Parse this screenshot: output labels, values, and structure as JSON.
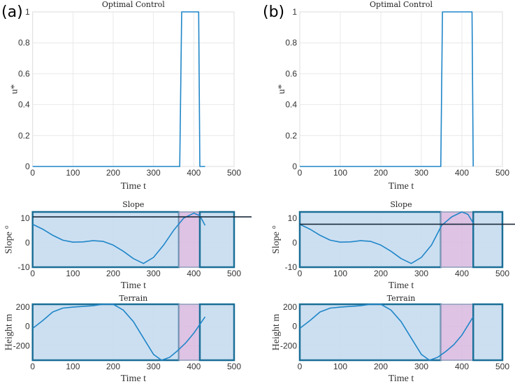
{
  "panel_labels": [
    "(a)",
    "(b)"
  ],
  "colors": {
    "line": "#1f86c8",
    "region_fill": "#c6dcef",
    "region_border": "#1b6f97",
    "control_fill": "#d8b9df",
    "threshold_line": "#1a2a3a",
    "grid": "#e4e4e4"
  },
  "chart_data": [
    {
      "panel": "(a)",
      "type": "line",
      "title": "Optimal Control",
      "xlabel": "Time t",
      "ylabel": "u*",
      "xlim": [
        0,
        500
      ],
      "ylim": [
        0,
        1
      ],
      "xticks": [
        0,
        100,
        200,
        300,
        400,
        500
      ],
      "yticks": [
        0,
        0.2,
        0.4,
        0.6,
        0.8,
        1
      ],
      "ytick_labels": [
        "0",
        "0.2",
        "0.4",
        "0.6",
        "0.8",
        "1"
      ],
      "grid": true,
      "x": [
        0,
        365,
        370,
        412,
        415,
        428
      ],
      "y": [
        0,
        0,
        1,
        1,
        0,
        0
      ]
    },
    {
      "panel": "(a)",
      "type": "line",
      "title": "Slope",
      "xlabel": "Time t",
      "ylabel": "Slope °",
      "xlim": [
        0,
        500
      ],
      "ylim": [
        -10,
        12.5
      ],
      "xticks": [
        0,
        100,
        200,
        300,
        400,
        500
      ],
      "yticks": [
        -10,
        0,
        10
      ],
      "ytick_labels": [
        "-10",
        "0",
        "10"
      ],
      "grid": true,
      "regions": [
        {
          "kind": "coast",
          "from": 0,
          "to": 363
        },
        {
          "kind": "control",
          "from": 363,
          "to": 415
        },
        {
          "kind": "coast",
          "from": 415,
          "to": 500
        }
      ],
      "threshold": 10.5,
      "x": [
        0,
        25,
        50,
        75,
        100,
        125,
        150,
        175,
        200,
        225,
        250,
        275,
        300,
        325,
        350,
        375,
        400,
        415,
        428
      ],
      "y": [
        7.5,
        5.5,
        3,
        1,
        0.2,
        0.3,
        0.8,
        0.5,
        -1,
        -3.5,
        -6.5,
        -8.5,
        -6,
        -1,
        5,
        10,
        12,
        11,
        7
      ]
    },
    {
      "panel": "(a)",
      "type": "line",
      "title": "Terrain",
      "xlabel": "Time t",
      "ylabel": "Height m",
      "xlim": [
        0,
        500
      ],
      "ylim": [
        -350,
        230
      ],
      "xticks": [
        0,
        100,
        200,
        300,
        400,
        500
      ],
      "yticks": [
        -200,
        0,
        200
      ],
      "ytick_labels": [
        "-200",
        "0",
        "200"
      ],
      "grid": true,
      "regions": [
        {
          "kind": "coast",
          "from": 0,
          "to": 363
        },
        {
          "kind": "control",
          "from": 363,
          "to": 415
        },
        {
          "kind": "coast",
          "from": 415,
          "to": 500
        }
      ],
      "x": [
        0,
        25,
        50,
        75,
        100,
        150,
        175,
        200,
        225,
        250,
        275,
        300,
        320,
        340,
        360,
        380,
        400,
        428
      ],
      "y": [
        -20,
        60,
        150,
        190,
        200,
        215,
        230,
        230,
        170,
        50,
        -120,
        -290,
        -350,
        -320,
        -250,
        -170,
        -70,
        100
      ]
    },
    {
      "panel": "(b)",
      "type": "line",
      "title": "Optimal Control",
      "xlabel": "Time t",
      "ylabel": "u*",
      "xlim": [
        0,
        500
      ],
      "ylim": [
        0,
        1
      ],
      "xticks": [
        0,
        100,
        200,
        300,
        400,
        500
      ],
      "yticks": [
        0,
        0.2,
        0.4,
        0.6,
        0.8,
        1
      ],
      "ytick_labels": [
        "0",
        "0.2",
        "0.4",
        "0.6",
        "0.8",
        "1"
      ],
      "grid": true,
      "x": [
        0,
        348,
        352,
        425,
        428
      ],
      "y": [
        0,
        0,
        1,
        1,
        0
      ]
    },
    {
      "panel": "(b)",
      "type": "line",
      "title": "Slope",
      "xlabel": "Time t",
      "ylabel": "Slope °",
      "xlim": [
        0,
        500
      ],
      "ylim": [
        -10,
        12.5
      ],
      "xticks": [
        0,
        100,
        200,
        300,
        400,
        500
      ],
      "yticks": [
        -10,
        0,
        10
      ],
      "ytick_labels": [
        "-10",
        "0",
        "10"
      ],
      "grid": true,
      "regions": [
        {
          "kind": "coast",
          "from": 0,
          "to": 348
        },
        {
          "kind": "control",
          "from": 348,
          "to": 428
        },
        {
          "kind": "coast",
          "from": 428,
          "to": 500
        }
      ],
      "threshold": 7.5,
      "x": [
        0,
        25,
        50,
        75,
        100,
        125,
        150,
        175,
        200,
        225,
        250,
        275,
        300,
        325,
        350,
        375,
        400,
        415,
        428
      ],
      "y": [
        7.5,
        5.5,
        3,
        1,
        0.2,
        0.3,
        0.8,
        0.5,
        -1,
        -3.5,
        -6.5,
        -8.5,
        -6,
        -1,
        7,
        10.5,
        12.5,
        11.5,
        8
      ]
    },
    {
      "panel": "(b)",
      "type": "line",
      "title": "Terrain",
      "xlabel": "Time t",
      "ylabel": "Height m",
      "xlim": [
        0,
        500
      ],
      "ylim": [
        -350,
        230
      ],
      "xticks": [
        0,
        100,
        200,
        300,
        400,
        500
      ],
      "yticks": [
        -200,
        0,
        200
      ],
      "ytick_labels": [
        "-200",
        "0",
        "200"
      ],
      "grid": true,
      "regions": [
        {
          "kind": "coast",
          "from": 0,
          "to": 348
        },
        {
          "kind": "control",
          "from": 348,
          "to": 428
        },
        {
          "kind": "coast",
          "from": 428,
          "to": 500
        }
      ],
      "x": [
        0,
        25,
        50,
        75,
        100,
        150,
        175,
        200,
        225,
        250,
        275,
        300,
        320,
        340,
        360,
        380,
        400,
        428
      ],
      "y": [
        -20,
        60,
        150,
        190,
        200,
        215,
        230,
        230,
        170,
        50,
        -120,
        -290,
        -350,
        -320,
        -260,
        -190,
        -90,
        100
      ]
    }
  ]
}
